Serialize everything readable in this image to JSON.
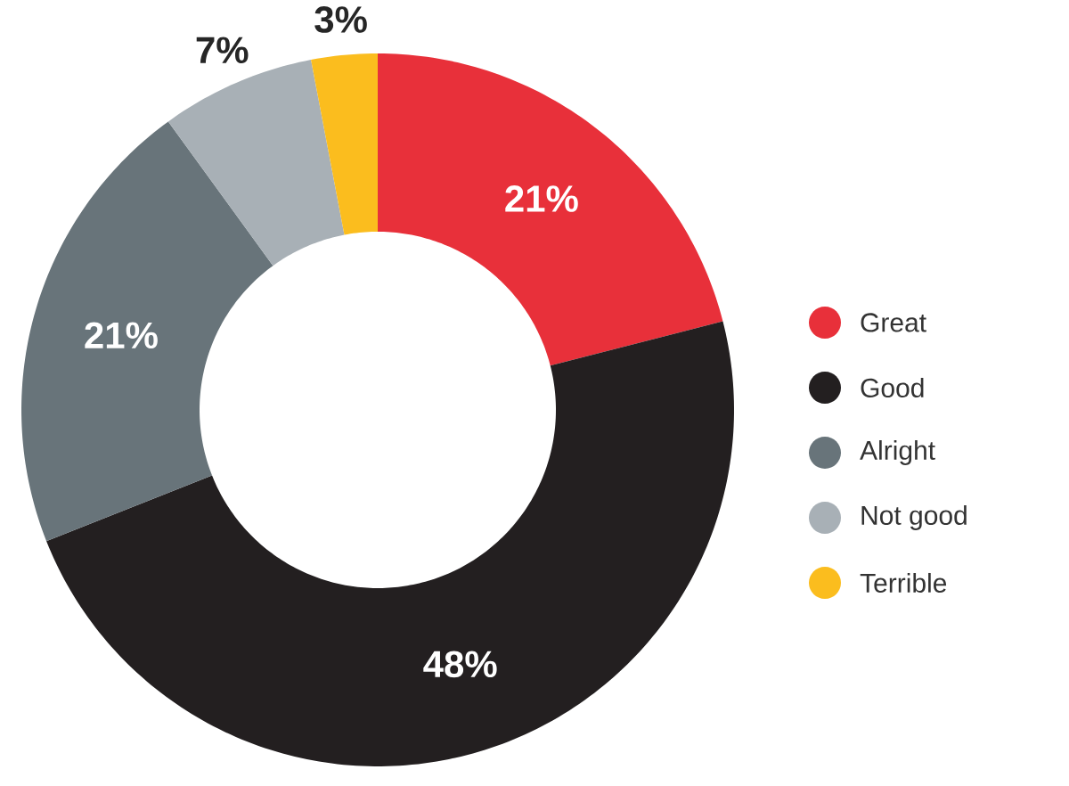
{
  "chart_data": {
    "type": "donut",
    "categories": [
      "Great",
      "Good",
      "Alright",
      "Not good",
      "Terrible"
    ],
    "values": [
      21,
      48,
      21,
      7,
      3
    ],
    "colors": [
      "#e8303a",
      "#231f20",
      "#68747a",
      "#a8b0b6",
      "#fbbd1e"
    ],
    "value_labels": [
      "21%",
      "48%",
      "21%",
      "7%",
      "3%"
    ],
    "legend": "right"
  }
}
